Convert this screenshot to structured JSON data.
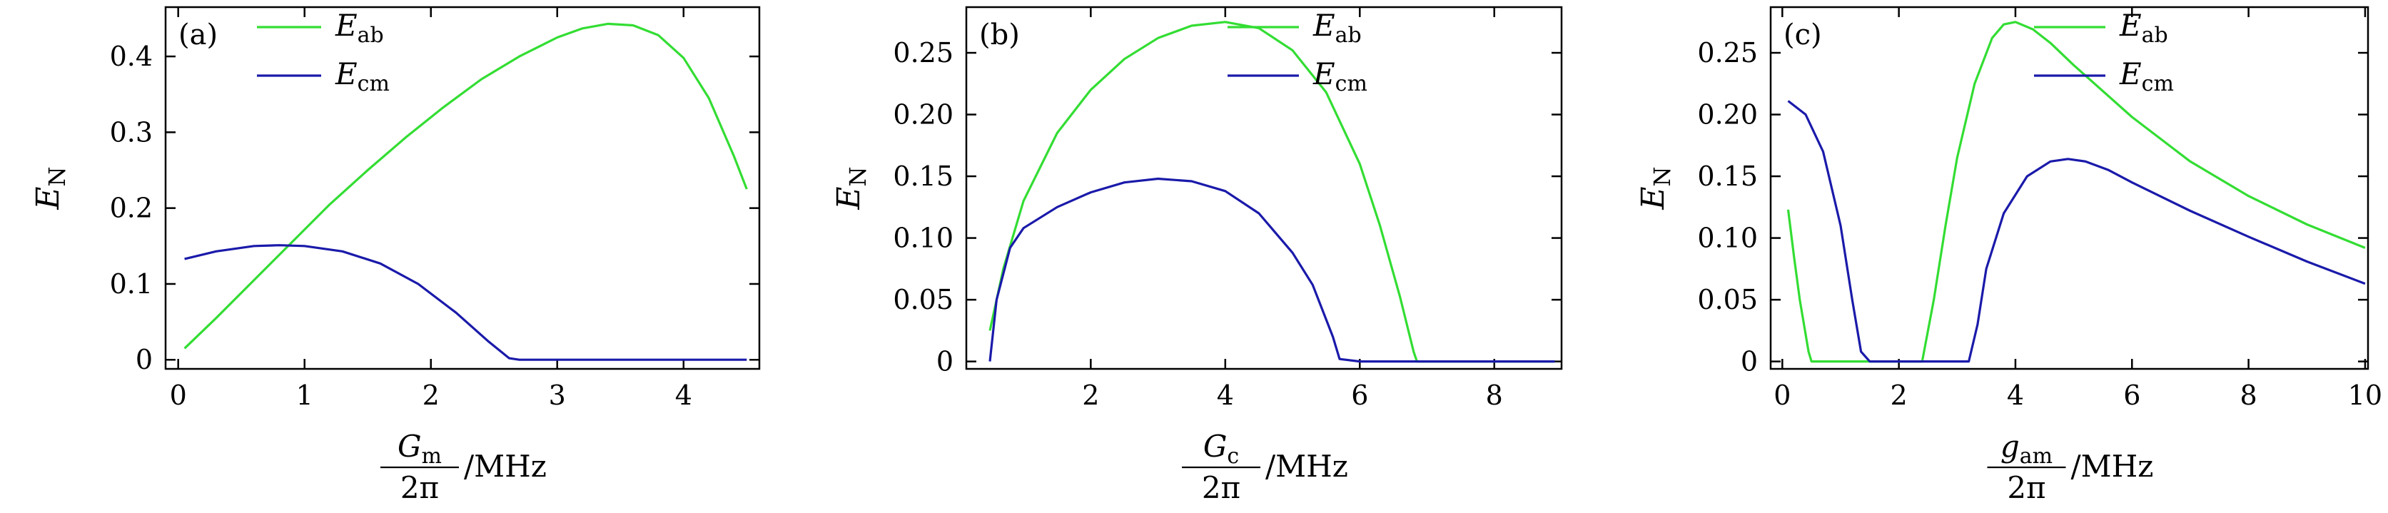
{
  "figure_title": "",
  "chart_data": [
    {
      "type": "line",
      "panel_label": "(a)",
      "xlabel": {
        "var": "G",
        "sub": "m",
        "den": "2π",
        "unit": "/MHz"
      },
      "ylabel": {
        "var": "E",
        "sub": "N"
      },
      "xlim": [
        -0.1,
        4.6
      ],
      "ylim": [
        -0.012,
        0.465
      ],
      "xticks": [
        "0",
        "1",
        "2",
        "3",
        "4"
      ],
      "yticks": [
        "0",
        "0.1",
        "0.2",
        "0.3",
        "0.4"
      ],
      "xtick_values": [
        0,
        1,
        2,
        3,
        4
      ],
      "ytick_values": [
        0,
        0.1,
        0.2,
        0.3,
        0.4
      ],
      "legend_position": "top-left",
      "series": [
        {
          "name": "E",
          "sub": "ab",
          "color": "#33dd33",
          "x": [
            0.05,
            0.3,
            0.6,
            0.9,
            1.2,
            1.5,
            1.8,
            2.1,
            2.4,
            2.7,
            3.0,
            3.2,
            3.4,
            3.6,
            3.8,
            4.0,
            4.2,
            4.4,
            4.5
          ],
          "y": [
            0.015,
            0.055,
            0.105,
            0.155,
            0.205,
            0.25,
            0.293,
            0.333,
            0.37,
            0.4,
            0.425,
            0.437,
            0.443,
            0.441,
            0.428,
            0.398,
            0.345,
            0.268,
            0.225
          ]
        },
        {
          "name": "E",
          "sub": "cm",
          "color": "#1a1aaa",
          "x": [
            0.05,
            0.3,
            0.6,
            0.8,
            1.0,
            1.3,
            1.6,
            1.9,
            2.2,
            2.45,
            2.62,
            2.7,
            3.0,
            3.5,
            4.0,
            4.5
          ],
          "y": [
            0.133,
            0.143,
            0.15,
            0.151,
            0.15,
            0.143,
            0.127,
            0.1,
            0.062,
            0.025,
            0.002,
            0,
            0,
            0,
            0,
            0
          ]
        }
      ]
    },
    {
      "type": "line",
      "panel_label": "(b)",
      "xlabel": {
        "var": "G",
        "sub": "c",
        "den": "2π",
        "unit": "/MHz"
      },
      "ylabel": {
        "var": "E",
        "sub": "N"
      },
      "xlim": [
        0.15,
        9.0
      ],
      "ylim": [
        -0.006,
        0.287
      ],
      "xticks": [
        "2",
        "4",
        "6",
        "8"
      ],
      "yticks": [
        "0",
        "0.05",
        "0.10",
        "0.15",
        "0.20",
        "0.25"
      ],
      "xtick_values": [
        2,
        4,
        6,
        8
      ],
      "ytick_values": [
        0,
        0.05,
        0.1,
        0.15,
        0.2,
        0.25
      ],
      "legend_position": "top-right",
      "series": [
        {
          "name": "E",
          "sub": "ab",
          "color": "#33dd33",
          "x": [
            0.5,
            0.7,
            1.0,
            1.5,
            2.0,
            2.5,
            3.0,
            3.5,
            4.0,
            4.5,
            5.0,
            5.5,
            6.0,
            6.3,
            6.6,
            6.8,
            6.85,
            7.5,
            8.9
          ],
          "y": [
            0.025,
            0.075,
            0.13,
            0.185,
            0.22,
            0.245,
            0.262,
            0.272,
            0.275,
            0.27,
            0.252,
            0.218,
            0.16,
            0.11,
            0.052,
            0.008,
            0,
            0,
            0
          ]
        },
        {
          "name": "E",
          "sub": "cm",
          "color": "#1a1aaa",
          "x": [
            0.5,
            0.6,
            0.8,
            1.0,
            1.5,
            2.0,
            2.5,
            3.0,
            3.5,
            4.0,
            4.5,
            5.0,
            5.3,
            5.6,
            5.7,
            6.0,
            7.0,
            8.0,
            8.9
          ],
          "y": [
            0,
            0.05,
            0.092,
            0.108,
            0.125,
            0.137,
            0.145,
            0.148,
            0.146,
            0.138,
            0.12,
            0.088,
            0.062,
            0.02,
            0.002,
            0,
            0,
            0,
            0
          ]
        }
      ]
    },
    {
      "type": "line",
      "panel_label": "(c)",
      "xlabel": {
        "var": "g",
        "sub": "am",
        "den": "2π",
        "unit": "/MHz"
      },
      "ylabel": {
        "var": "E",
        "sub": "N"
      },
      "xlim": [
        -0.2,
        10.05
      ],
      "ylim": [
        -0.006,
        0.287
      ],
      "xticks": [
        "0",
        "2",
        "4",
        "6",
        "8",
        "10"
      ],
      "yticks": [
        "0",
        "0.05",
        "0.10",
        "0.15",
        "0.20",
        "0.25"
      ],
      "xtick_values": [
        0,
        2,
        4,
        6,
        8,
        10
      ],
      "ytick_values": [
        0,
        0.05,
        0.1,
        0.15,
        0.2,
        0.25
      ],
      "legend_position": "top-right",
      "series": [
        {
          "name": "E",
          "sub": "ab",
          "color": "#33dd33",
          "x": [
            0.1,
            0.2,
            0.3,
            0.45,
            0.5,
            1.0,
            2.0,
            2.4,
            2.6,
            2.8,
            3.0,
            3.3,
            3.6,
            3.8,
            4.0,
            4.3,
            4.6,
            5.0,
            6.0,
            7.0,
            8.0,
            9.0,
            10.0
          ],
          "y": [
            0.123,
            0.085,
            0.05,
            0.008,
            0,
            0,
            0,
            0,
            0.05,
            0.11,
            0.165,
            0.225,
            0.262,
            0.273,
            0.275,
            0.269,
            0.258,
            0.24,
            0.198,
            0.162,
            0.134,
            0.111,
            0.092
          ]
        },
        {
          "name": "E",
          "sub": "cm",
          "color": "#1a1aaa",
          "x": [
            0.1,
            0.4,
            0.7,
            1.0,
            1.2,
            1.35,
            1.5,
            2.0,
            3.0,
            3.2,
            3.35,
            3.5,
            3.8,
            4.2,
            4.6,
            4.9,
            5.2,
            5.6,
            6.0,
            7.0,
            8.0,
            9.0,
            10.0
          ],
          "y": [
            0.211,
            0.2,
            0.17,
            0.11,
            0.05,
            0.008,
            0,
            0,
            0,
            0,
            0.03,
            0.075,
            0.12,
            0.15,
            0.162,
            0.164,
            0.162,
            0.155,
            0.145,
            0.122,
            0.101,
            0.081,
            0.063
          ]
        }
      ]
    }
  ]
}
